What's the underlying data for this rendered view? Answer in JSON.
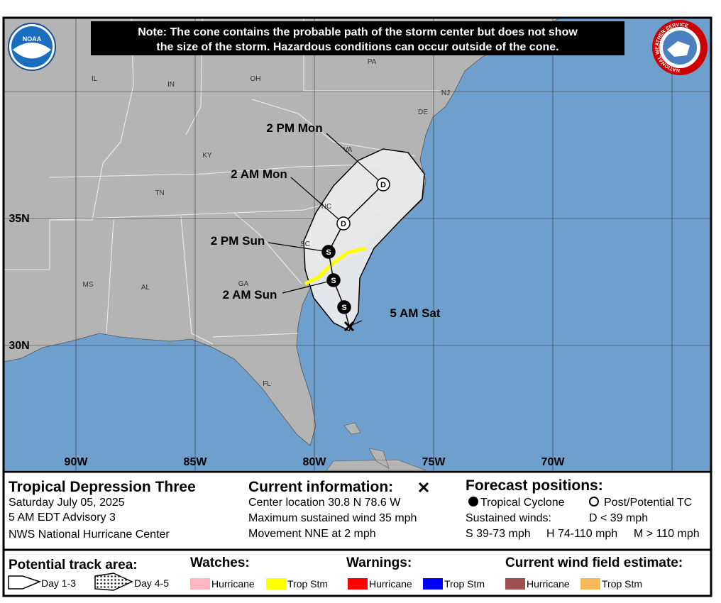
{
  "logos": {
    "noaa": "NOAA",
    "nws": "NATIONAL WEATHER SERVICE"
  },
  "note": [
    "Note: The cone contains the probable path of the storm center but does not show",
    "the size of the storm. Hazardous conditions can occur outside of the cone."
  ],
  "map": {
    "states": [
      "IL",
      "IN",
      "OH",
      "PA",
      "NJ",
      "DE",
      "KY",
      "VA",
      "TN",
      "NC",
      "SC",
      "MS",
      "AL",
      "GA",
      "FL"
    ],
    "lat_labels": [
      "35N",
      "30N"
    ],
    "lon_labels": [
      "90W",
      "85W",
      "80W",
      "75W",
      "70W"
    ],
    "forecast_points": [
      {
        "time": "5 AM Sat"
      },
      {
        "symbol": "S"
      },
      {
        "time": "2 AM Sun",
        "symbol": "S"
      },
      {
        "time": "2 PM Sun",
        "symbol": "S"
      },
      {
        "time": "2 AM Mon",
        "symbol": "D"
      },
      {
        "time": "2 PM Mon",
        "symbol": "D"
      }
    ]
  },
  "info": {
    "title": "Tropical Depression Three",
    "date": "Saturday July 05, 2025",
    "advisory": "5 AM EDT Advisory 3",
    "center": "NWS National Hurricane Center",
    "current_heading": "Current information:",
    "current_lines": [
      "Center location 30.8 N 78.6 W",
      "Maximum sustained wind 35 mph",
      "Movement NNE at 2 mph"
    ],
    "forecast_heading": "Forecast positions:",
    "tropical_cyclone": "Tropical Cyclone",
    "post_potential": "Post/Potential TC",
    "sustained_winds": "Sustained winds:",
    "wind_classes": [
      "D < 39 mph",
      "S 39-73 mph",
      "H 74-110 mph",
      "M > 110 mph"
    ]
  },
  "legend": {
    "track_heading": "Potential track area:",
    "day_1_3": "Day 1-3",
    "day_4_5": "Day 4-5",
    "watches_heading": "Watches:",
    "watches": [
      "Hurricane",
      "Trop Stm"
    ],
    "warnings_heading": "Warnings:",
    "warnings": [
      "Hurricane",
      "Trop Stm"
    ],
    "wind_field_heading": "Current wind field estimate:",
    "wind_field": [
      "Hurricane",
      "Trop Stm"
    ]
  }
}
